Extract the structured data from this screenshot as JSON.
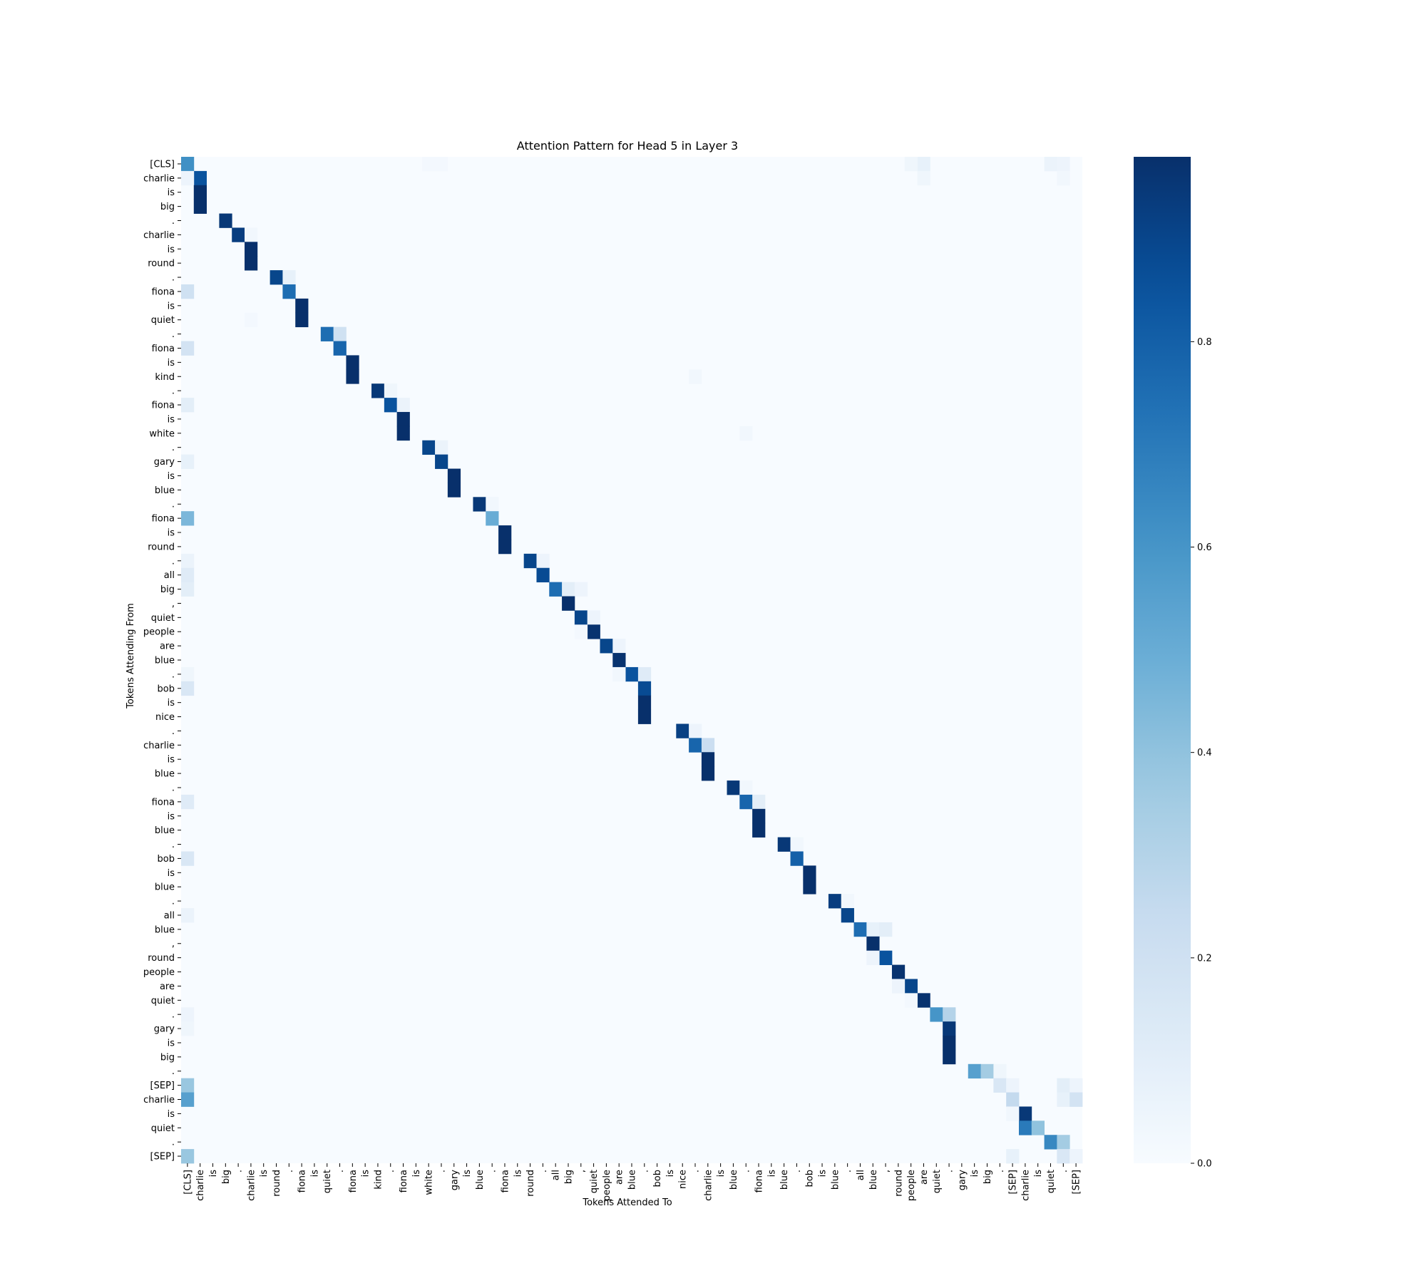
{
  "chart_data": {
    "type": "heatmap",
    "title": "Attention Pattern for Head 5 in Layer 3",
    "xlabel": "Tokens Attended To",
    "ylabel": "Tokens Attending From",
    "tokens": [
      "[CLS]",
      "charlie",
      "is",
      "big",
      ".",
      "charlie",
      "is",
      "round",
      ".",
      "fiona",
      "is",
      "quiet",
      ".",
      "fiona",
      "is",
      "kind",
      ".",
      "fiona",
      "is",
      "white",
      ".",
      "gary",
      "is",
      "blue",
      ".",
      "fiona",
      "is",
      "round",
      ".",
      "all",
      "big",
      ",",
      "quiet",
      "people",
      "are",
      "blue",
      ".",
      "bob",
      "is",
      "nice",
      ".",
      "charlie",
      "is",
      "blue",
      ".",
      "fiona",
      "is",
      "blue",
      ".",
      "bob",
      "is",
      "blue",
      ".",
      "all",
      "blue",
      ",",
      "round",
      "people",
      "are",
      "quiet",
      ".",
      "gary",
      "is",
      "big",
      ".",
      "[SEP]",
      "charlie",
      "is",
      "quiet",
      ".",
      "[SEP]"
    ],
    "colorbar": {
      "min": 0.0,
      "max": 0.98,
      "ticks": [
        0.0,
        0.2,
        0.4,
        0.6,
        0.8
      ],
      "tick_labels": [
        "0.0",
        "0.2",
        "0.4",
        "0.6",
        "0.8"
      ],
      "colormap": "Blues"
    },
    "cells": [
      [
        0,
        0,
        0.62
      ],
      [
        0,
        58,
        0.08
      ],
      [
        0,
        57,
        0.04
      ],
      [
        0,
        68,
        0.06
      ],
      [
        0,
        69,
        0.05
      ],
      [
        0,
        19,
        0.02
      ],
      [
        0,
        20,
        0.02
      ],
      [
        1,
        1,
        0.85
      ],
      [
        1,
        0,
        0.05
      ],
      [
        1,
        58,
        0.04
      ],
      [
        1,
        69,
        0.03
      ],
      [
        2,
        1,
        0.98
      ],
      [
        3,
        1,
        0.98
      ],
      [
        4,
        3,
        0.95
      ],
      [
        5,
        4,
        0.93
      ],
      [
        5,
        5,
        0.03
      ],
      [
        6,
        5,
        0.98
      ],
      [
        7,
        5,
        0.98
      ],
      [
        8,
        7,
        0.9
      ],
      [
        8,
        8,
        0.08
      ],
      [
        9,
        8,
        0.75
      ],
      [
        9,
        0,
        0.2
      ],
      [
        10,
        9,
        0.98
      ],
      [
        11,
        9,
        0.98
      ],
      [
        11,
        5,
        0.02
      ],
      [
        12,
        11,
        0.75
      ],
      [
        12,
        12,
        0.2
      ],
      [
        13,
        12,
        0.78
      ],
      [
        13,
        0,
        0.18
      ],
      [
        14,
        13,
        0.98
      ],
      [
        15,
        13,
        0.98
      ],
      [
        15,
        40,
        0.03
      ],
      [
        16,
        15,
        0.95
      ],
      [
        16,
        16,
        0.04
      ],
      [
        17,
        16,
        0.85
      ],
      [
        17,
        0,
        0.1
      ],
      [
        17,
        17,
        0.06
      ],
      [
        18,
        17,
        0.98
      ],
      [
        19,
        17,
        0.98
      ],
      [
        19,
        44,
        0.03
      ],
      [
        20,
        19,
        0.9
      ],
      [
        20,
        20,
        0.06
      ],
      [
        21,
        20,
        0.9
      ],
      [
        21,
        0,
        0.08
      ],
      [
        22,
        21,
        0.98
      ],
      [
        23,
        21,
        0.98
      ],
      [
        24,
        23,
        0.95
      ],
      [
        24,
        24,
        0.03
      ],
      [
        25,
        24,
        0.5
      ],
      [
        25,
        0,
        0.45
      ],
      [
        26,
        25,
        0.98
      ],
      [
        27,
        25,
        0.98
      ],
      [
        28,
        27,
        0.9
      ],
      [
        28,
        28,
        0.05
      ],
      [
        28,
        0,
        0.06
      ],
      [
        29,
        28,
        0.88
      ],
      [
        29,
        0,
        0.12
      ],
      [
        30,
        29,
        0.75
      ],
      [
        30,
        30,
        0.1
      ],
      [
        30,
        0,
        0.1
      ],
      [
        30,
        31,
        0.05
      ],
      [
        31,
        30,
        0.98
      ],
      [
        32,
        31,
        0.9
      ],
      [
        32,
        32,
        0.05
      ],
      [
        33,
        32,
        0.97
      ],
      [
        33,
        31,
        0.02
      ],
      [
        34,
        33,
        0.9
      ],
      [
        34,
        34,
        0.05
      ],
      [
        35,
        34,
        0.97
      ],
      [
        36,
        35,
        0.85
      ],
      [
        36,
        36,
        0.12
      ],
      [
        36,
        34,
        0.03
      ],
      [
        36,
        0,
        0.04
      ],
      [
        37,
        36,
        0.88
      ],
      [
        37,
        0,
        0.15
      ],
      [
        38,
        36,
        0.98
      ],
      [
        39,
        36,
        0.98
      ],
      [
        40,
        39,
        0.92
      ],
      [
        40,
        40,
        0.05
      ],
      [
        41,
        40,
        0.78
      ],
      [
        41,
        41,
        0.22
      ],
      [
        42,
        41,
        0.98
      ],
      [
        43,
        41,
        0.98
      ],
      [
        44,
        43,
        0.95
      ],
      [
        44,
        44,
        0.03
      ],
      [
        45,
        44,
        0.78
      ],
      [
        45,
        45,
        0.1
      ],
      [
        45,
        0,
        0.12
      ],
      [
        46,
        45,
        0.98
      ],
      [
        47,
        45,
        0.98
      ],
      [
        48,
        47,
        0.95
      ],
      [
        48,
        48,
        0.03
      ],
      [
        49,
        48,
        0.8
      ],
      [
        49,
        0,
        0.15
      ],
      [
        50,
        49,
        0.98
      ],
      [
        51,
        49,
        0.98
      ],
      [
        52,
        51,
        0.93
      ],
      [
        52,
        52,
        0.03
      ],
      [
        53,
        52,
        0.9
      ],
      [
        53,
        0,
        0.06
      ],
      [
        54,
        53,
        0.75
      ],
      [
        54,
        54,
        0.08
      ],
      [
        54,
        55,
        0.1
      ],
      [
        55,
        54,
        0.98
      ],
      [
        56,
        55,
        0.85
      ],
      [
        56,
        54,
        0.05
      ],
      [
        57,
        56,
        0.97
      ],
      [
        58,
        57,
        0.9
      ],
      [
        58,
        56,
        0.05
      ],
      [
        59,
        58,
        0.97
      ],
      [
        59,
        57,
        0.02
      ],
      [
        60,
        59,
        0.6
      ],
      [
        60,
        60,
        0.3
      ],
      [
        60,
        0,
        0.05
      ],
      [
        61,
        60,
        0.95
      ],
      [
        61,
        0,
        0.04
      ],
      [
        62,
        60,
        0.98
      ],
      [
        63,
        60,
        0.98
      ],
      [
        64,
        62,
        0.55
      ],
      [
        64,
        63,
        0.35
      ],
      [
        64,
        64,
        0.04
      ],
      [
        65,
        0,
        0.38
      ],
      [
        65,
        64,
        0.15
      ],
      [
        65,
        65,
        0.05
      ],
      [
        65,
        69,
        0.1
      ],
      [
        65,
        70,
        0.05
      ],
      [
        66,
        0,
        0.55
      ],
      [
        66,
        65,
        0.25
      ],
      [
        66,
        69,
        0.08
      ],
      [
        66,
        70,
        0.18
      ],
      [
        67,
        66,
        0.95
      ],
      [
        67,
        65,
        0.03
      ],
      [
        68,
        66,
        0.7
      ],
      [
        68,
        67,
        0.4
      ],
      [
        69,
        68,
        0.65
      ],
      [
        69,
        69,
        0.35
      ],
      [
        70,
        0,
        0.38
      ],
      [
        70,
        65,
        0.08
      ],
      [
        70,
        69,
        0.15
      ],
      [
        70,
        70,
        0.05
      ]
    ]
  }
}
